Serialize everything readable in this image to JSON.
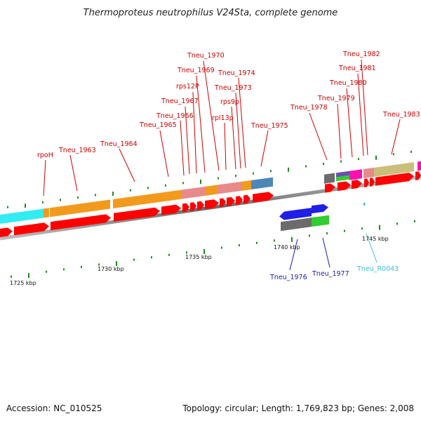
{
  "title": "Thermoproteus neutrophilus V24Sta, complete genome",
  "footer": {
    "accession": "Accession: NC_010525",
    "summary": "Topology: circular; Length: 1,769,823 bp; Genes: 2,008"
  },
  "scale_labels": [
    "1725 kbp",
    "1730 kbp",
    "1735 kbp",
    "1740 kbp",
    "1745 kbp"
  ],
  "gene_labels_top": [
    "rpoH",
    "Tneu_1963",
    "Tneu_1964",
    "Tneu_1965",
    "Tneu_1966",
    "Tneu_1967",
    "rps12P",
    "Tneu_1969",
    "Tneu_1970",
    "rpl13p",
    "rps9p",
    "Tneu_1973",
    "Tneu_1974",
    "Tneu_1975",
    "Tneu_1978",
    "Tneu_1979",
    "Tneu_1980",
    "Tneu_1981",
    "Tneu_1982",
    "Tneu_1983"
  ],
  "gene_labels_bottom": [
    "Tneu_1976",
    "Tneu_1977",
    "Tneu_R0043"
  ],
  "colors": {
    "label_red": "#cc0000",
    "label_blue": "#1a1ab0",
    "label_cyan": "#3bbde0",
    "cds": "#ff0000",
    "orange": "#f29a1c",
    "cyan": "#33ecf2",
    "pink": "#e88a8a",
    "steelblue": "#4f86b8",
    "olive": "#c9bf7a",
    "gray": "#6b6b6b",
    "green": "#33cc33",
    "blue": "#1f1fe6",
    "purple": "#6a4fb0",
    "magenta": "#ff10b0",
    "backbone": "#7a7a7a",
    "tick": "#1f8a1f"
  }
}
